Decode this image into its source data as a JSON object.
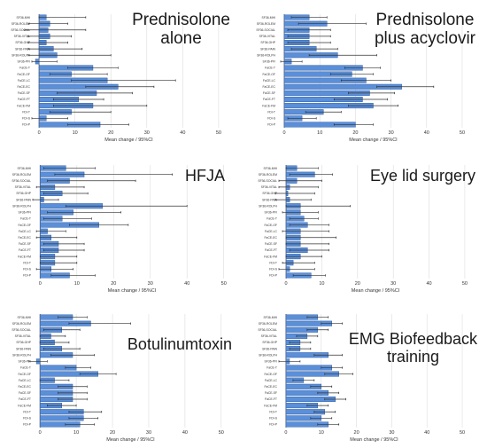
{
  "chart_data": [
    {
      "type": "bar",
      "orientation": "horizontal",
      "title": "Prednisolone alone",
      "title_lines": [
        "Prednisolone",
        "alone"
      ],
      "xlabel": "Mean change / 95%CI",
      "xlim": [
        0,
        50
      ],
      "xticks": [
        "0",
        "10",
        "20",
        "30",
        "40",
        "50"
      ],
      "grid": true,
      "categories": [
        "SF36-MHI",
        "SF36-ROLEM",
        "SF36-SOCIAL",
        "SF36-VITAL",
        "SF36-GHP",
        "SF36-PAIN",
        "SF36-ROLPH",
        "SF36-PFI",
        "FaCE-T",
        "FaCE-OF",
        "FaCE-LC",
        "FaCE-EC",
        "FaCE-SF",
        "FaCE-FT",
        "FaCE-FM",
        "FDI-T",
        "FDI-S",
        "FDI-P"
      ],
      "values": [
        2,
        3,
        2.5,
        3,
        2,
        4,
        5,
        -1,
        15,
        9,
        19,
        22,
        16,
        11,
        15,
        9,
        2,
        17
      ],
      "ci_low": [
        0,
        -3,
        -4,
        -3,
        -3,
        -3,
        -3,
        -2,
        8,
        3,
        9,
        13,
        5,
        4,
        4,
        3,
        -2,
        8
      ],
      "ci_high": [
        13,
        8,
        13,
        9,
        8,
        12,
        20,
        5,
        22,
        19,
        38,
        32,
        26,
        18,
        30,
        20,
        8,
        25
      ]
    },
    {
      "type": "bar",
      "orientation": "horizontal",
      "title": "Prednisolone plus acyclovir",
      "title_lines": [
        "Prednisolone",
        "plus acyclovir"
      ],
      "xlabel": "Mean change / 95%CI",
      "xlim": [
        0,
        50
      ],
      "xticks": [
        "0",
        "10",
        "20",
        "30",
        "40",
        "50"
      ],
      "grid": true,
      "categories": [
        "SF36-MHI",
        "SF36-ROLEM",
        "SF36-SOCIAL",
        "SF36-VITAL",
        "SF36-GHP",
        "SF36-PAIN",
        "SF36-ROLPH",
        "SF36-PFI",
        "FaCE-T",
        "FaCE-OF",
        "FaCE-LC",
        "FaCE-EC",
        "FaCE-SF",
        "FaCE-FT",
        "FaCE-FM",
        "FDI-T",
        "FDI-S",
        "FDI-P"
      ],
      "values": [
        7,
        12,
        7,
        7,
        7,
        9,
        15,
        2,
        22,
        19,
        23,
        33,
        24,
        22,
        25,
        11,
        5,
        20
      ],
      "ci_low": [
        2,
        4,
        1,
        1,
        1,
        2,
        7,
        -1,
        17,
        13,
        16,
        26,
        18,
        14,
        18,
        6,
        1,
        14
      ],
      "ci_high": [
        12,
        23,
        13,
        13,
        13,
        15,
        26,
        5,
        27,
        25,
        30,
        42,
        31,
        29,
        32,
        16,
        9,
        25
      ]
    },
    {
      "type": "bar",
      "orientation": "horizontal",
      "title": "HFJA",
      "xlabel": "Mean change / 95%CI",
      "xlim": [
        0,
        50
      ],
      "xticks": [
        "0",
        "10",
        "20",
        "30",
        "40",
        "50"
      ],
      "grid": true,
      "categories": [
        "SF36-MHI",
        "SF36-ROLEM",
        "SF36-SOCIAL",
        "SF36-VITAL",
        "SF36-GHP",
        "SF36-PAIN",
        "SF36-ROLPH",
        "SF36-PFI",
        "FaCE-T",
        "FaCE-OF",
        "FaCE-LC",
        "FaCE-EC",
        "FaCE-SF",
        "FaCE-FT",
        "FaCE-FM",
        "FDI-T",
        "FDI-S",
        "FDI-P"
      ],
      "values": [
        7,
        12,
        8,
        4,
        6,
        1,
        17,
        9,
        6,
        16,
        2,
        3,
        5,
        5,
        4,
        4,
        3,
        8
      ],
      "ci_low": [
        1,
        4,
        2,
        -1,
        1,
        -2,
        7,
        2,
        1,
        8,
        -1,
        -1,
        1,
        1,
        0,
        0,
        -1,
        3
      ],
      "ci_high": [
        15,
        36,
        26,
        12,
        13,
        5,
        40,
        22,
        14,
        24,
        7,
        10,
        12,
        12,
        10,
        10,
        9,
        15
      ]
    },
    {
      "type": "bar",
      "orientation": "horizontal",
      "title": "Eye lid surgery",
      "xlabel": "Mean change / 95%CI",
      "xlim": [
        0,
        50
      ],
      "xticks": [
        "0",
        "10",
        "20",
        "30",
        "40",
        "50"
      ],
      "grid": true,
      "categories": [
        "SF36-MHI",
        "SF36-ROLEM",
        "SF36-SOCIAL",
        "SF36-VITAL",
        "SF36-GHP",
        "SF36-PAIN",
        "SF36-ROLPH",
        "SF36-PFI",
        "FaCE-T",
        "FaCE-OF",
        "FaCE-LC",
        "FaCE-EC",
        "FaCE-SF",
        "FaCE-FT",
        "FaCE-FM",
        "FDI-T",
        "FDI-S",
        "FDI-P"
      ],
      "values": [
        3,
        8,
        3,
        1,
        0.5,
        1,
        4,
        4,
        5,
        6,
        4,
        4,
        4,
        6,
        4,
        2,
        1,
        7
      ],
      "ci_low": [
        0,
        1,
        -2,
        -2,
        -3,
        -3,
        0,
        -1,
        1,
        1,
        -1,
        0,
        0,
        1,
        0,
        -1,
        -2,
        2
      ],
      "ci_high": [
        9,
        13,
        10,
        9,
        8,
        7,
        18,
        9,
        9,
        12,
        12,
        14,
        12,
        12,
        10,
        8,
        8,
        11
      ]
    },
    {
      "type": "bar",
      "orientation": "horizontal",
      "title": "Botulinumtoxin",
      "xlabel": "Mean change / 95%CI",
      "xlim": [
        0,
        50
      ],
      "xticks": [
        "0",
        "10",
        "20",
        "30",
        "40",
        "50"
      ],
      "grid": true,
      "categories": [
        "SF36-MHI",
        "SF36-ROLEM",
        "SF36-SOCIAL",
        "SF36-VITAL",
        "SF36-GHP",
        "SF36-PAIN",
        "SF36-ROLPH",
        "SF36-PFI",
        "FaCE-T",
        "FaCE-OF",
        "FaCE-LC",
        "FaCE-EC",
        "FaCE-SF",
        "FaCE-FT",
        "FaCE-FM",
        "FDI-T",
        "FDI-S",
        "FDI-P"
      ],
      "values": [
        9,
        14,
        6,
        3,
        4,
        6,
        9,
        -1,
        10,
        16,
        4,
        9,
        9,
        9,
        6,
        12,
        12,
        11
      ],
      "ci_low": [
        5,
        8,
        1,
        0,
        0,
        1,
        3,
        -3,
        7,
        11,
        0,
        5,
        5,
        5,
        2,
        8,
        8,
        7
      ],
      "ci_high": [
        13,
        25,
        11,
        7,
        8,
        11,
        15,
        2,
        14,
        21,
        8,
        13,
        13,
        13,
        10,
        17,
        16,
        15
      ]
    },
    {
      "type": "bar",
      "orientation": "horizontal",
      "title": "EMG Biofeedback training",
      "title_lines": [
        "EMG Biofeedback",
        "training"
      ],
      "xlabel": "Mean change / 95%CI",
      "xlim": [
        0,
        50
      ],
      "xticks": [
        "0",
        "10",
        "20",
        "30",
        "40",
        "50"
      ],
      "grid": true,
      "categories": [
        "SF36-MHI",
        "SF36-ROLEM",
        "SF36-SOCIAL",
        "SF36-VITAL",
        "SF36-GHP",
        "SF36-PAIN",
        "SF36-ROLPH",
        "SF36-PFI",
        "FaCE-T",
        "FaCE-OF",
        "FaCE-LC",
        "FaCE-EC",
        "FaCE-SF",
        "FaCE-FT",
        "FaCE-FM",
        "FDI-T",
        "FDI-S",
        "FDI-P"
      ],
      "values": [
        9,
        13,
        9,
        6,
        4,
        4,
        12,
        1,
        13,
        15,
        5,
        10,
        12,
        14,
        9,
        11,
        10,
        12
      ],
      "ci_low": [
        6,
        10,
        6,
        3,
        1,
        1,
        8,
        -2,
        10,
        11,
        2,
        7,
        9,
        11,
        6,
        8,
        7,
        9
      ],
      "ci_high": [
        12,
        16,
        12,
        9,
        7,
        7,
        16,
        4,
        16,
        19,
        8,
        13,
        15,
        17,
        12,
        14,
        13,
        15
      ]
    }
  ],
  "colors": {
    "bar_fill": "#5b8fd8",
    "bar_edge": "#2f5fa8",
    "whisker": "#333333",
    "grid": "#dcdcdc"
  }
}
